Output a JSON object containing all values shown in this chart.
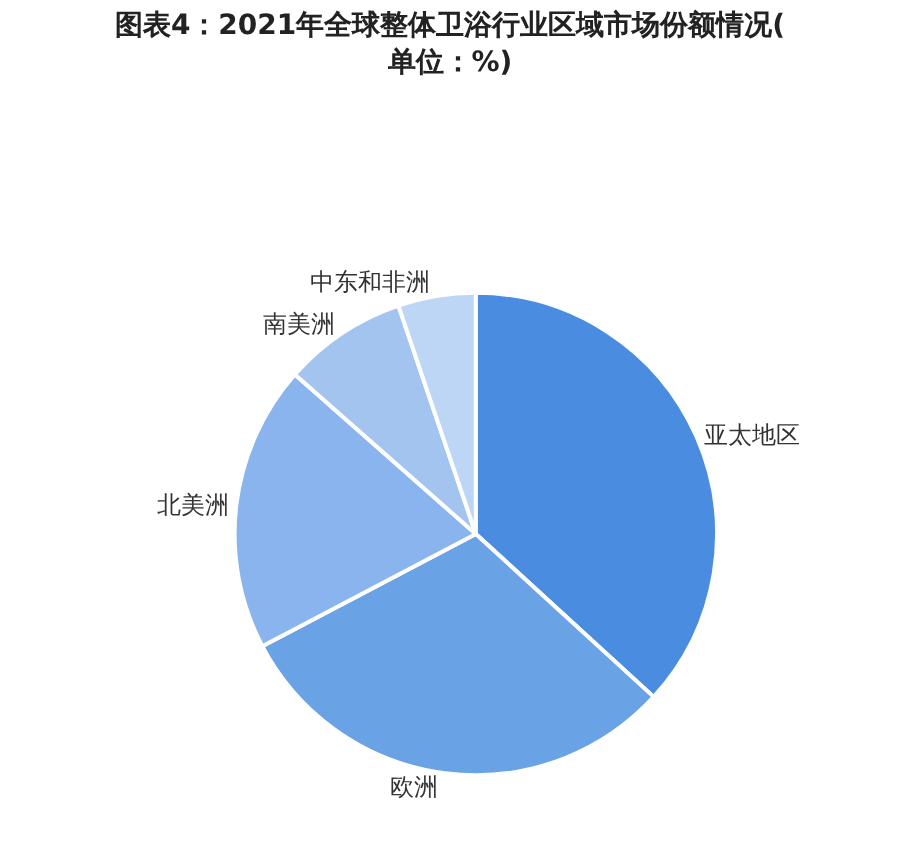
{
  "chart_data": {
    "type": "pie",
    "title": "图表4：2021年全球整体卫浴行业区域市场份额情况(单位：%)",
    "categories": [
      "亚太地区",
      "欧洲",
      "北美洲",
      "南美洲",
      "中东和非洲"
    ],
    "values": [
      36.8,
      30.5,
      19.2,
      8.3,
      5.2
    ],
    "colors": [
      "#4a8de0",
      "#6aa2e6",
      "#8ab4ee",
      "#a4c4f0",
      "#bed6f5"
    ],
    "legend": false
  }
}
